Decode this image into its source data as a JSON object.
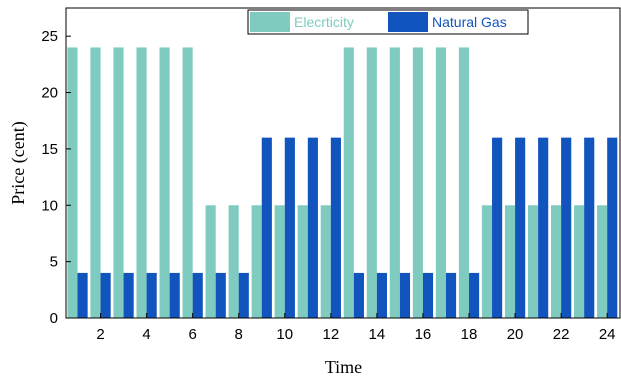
{
  "chart_data": {
    "type": "bar",
    "xlabel": "Time",
    "ylabel": "Price (cent)",
    "x": [
      1,
      2,
      3,
      4,
      5,
      6,
      7,
      8,
      9,
      10,
      11,
      12,
      13,
      14,
      15,
      16,
      17,
      18,
      19,
      20,
      21,
      22,
      23,
      24
    ],
    "xticks": [
      "2",
      "4",
      "6",
      "8",
      "10",
      "12",
      "14",
      "16",
      "18",
      "20",
      "22",
      "24"
    ],
    "yticks": [
      "0",
      "5",
      "10",
      "15",
      "20",
      "25"
    ],
    "ylim": [
      0,
      27.5
    ],
    "xlim": [
      0.5,
      24.6
    ],
    "legend_position": "top-right",
    "grid": false,
    "series": [
      {
        "name": "Elecrticity",
        "color": "#7fcbbf",
        "values": [
          24,
          24,
          24,
          24,
          24,
          24,
          10,
          10,
          10,
          10,
          10,
          10,
          24,
          24,
          24,
          24,
          24,
          24,
          10,
          10,
          10,
          10,
          10,
          10
        ]
      },
      {
        "name": "Natural Gas",
        "color": "#1254bd",
        "values": [
          4,
          4,
          4,
          4,
          4,
          4,
          4,
          4,
          16,
          16,
          16,
          16,
          4,
          4,
          4,
          4,
          4,
          4,
          16,
          16,
          16,
          16,
          16,
          16
        ]
      }
    ]
  }
}
